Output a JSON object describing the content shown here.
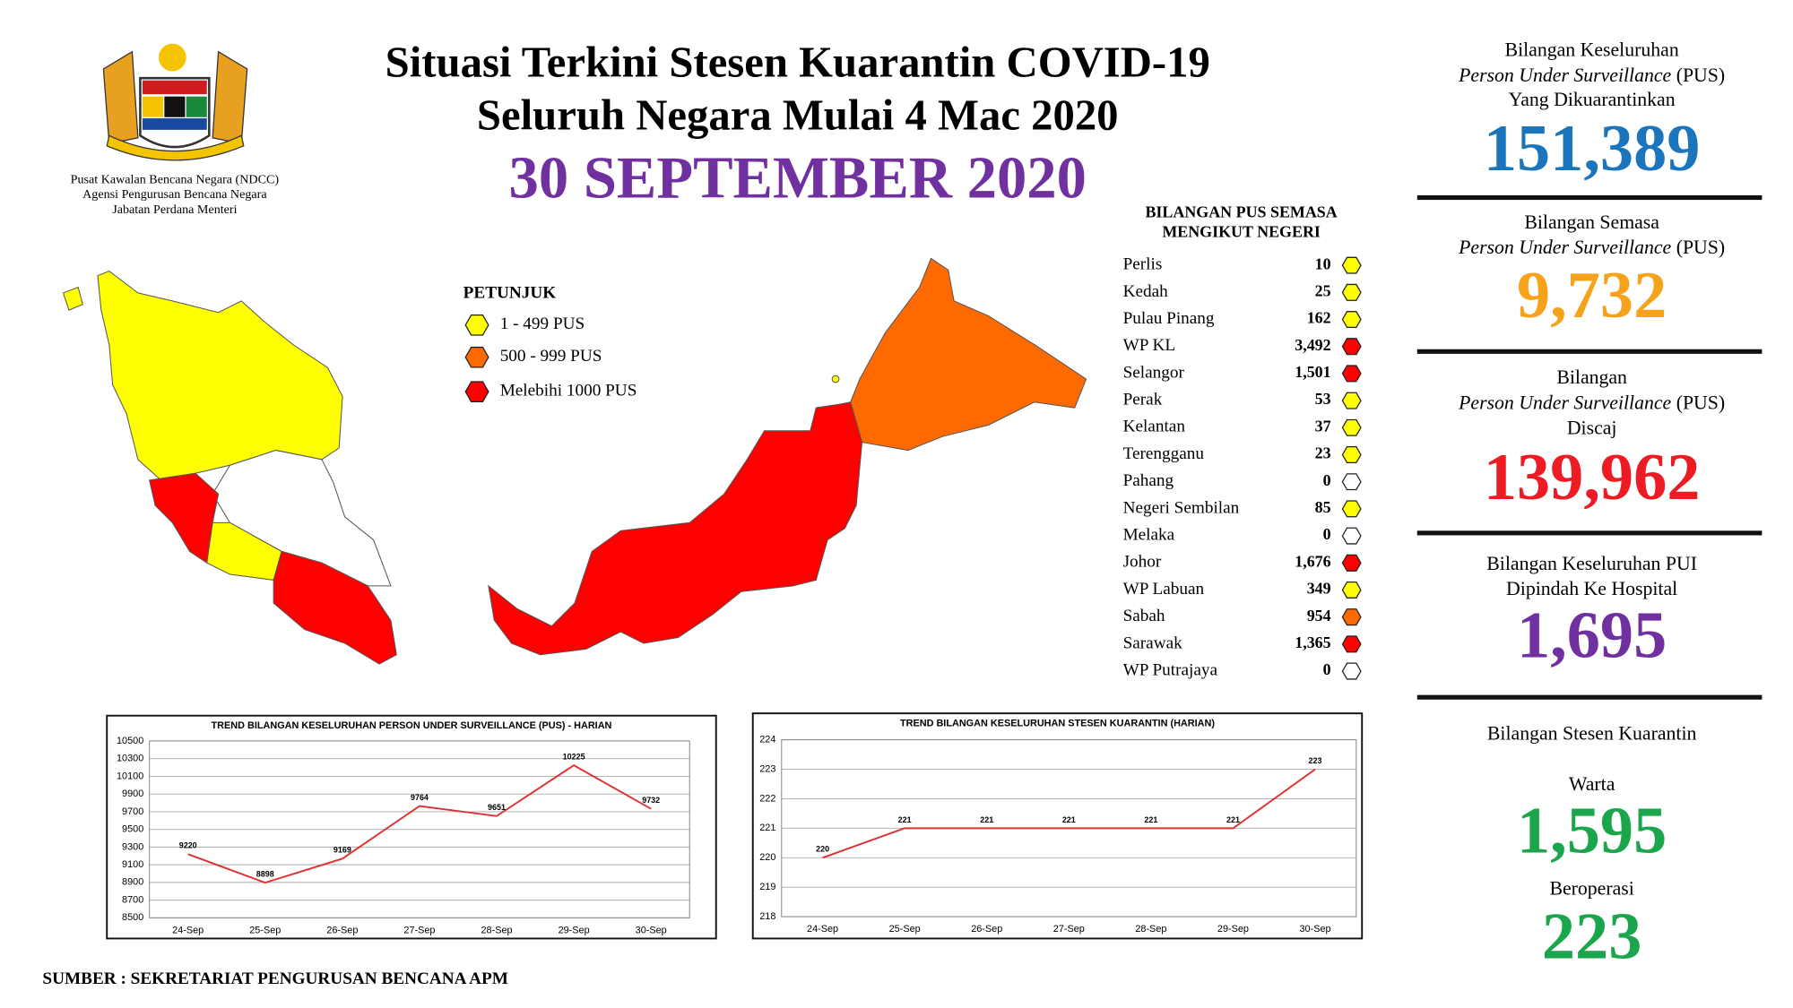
{
  "header": {
    "logo_caption": [
      "Pusat Kawalan Bencana Negara (NDCC)",
      "Agensi Pengurusan Bencana Negara",
      "Jabatan Perdana Menteri"
    ],
    "title_line1": "Situasi Terkini Stesen Kuarantin COVID-19",
    "title_line2": "Seluruh Negara Mulai 4 Mac 2020",
    "date": "30 SEPTEMBER 2020",
    "date_color": "#7030a0"
  },
  "legend": {
    "title": "PETUNJUK",
    "items": [
      {
        "label": "1 - 499 PUS",
        "color": "#ffff00"
      },
      {
        "label": "500 - 999 PUS",
        "color": "#ff6a00"
      },
      {
        "label": "Melebihi 1000 PUS",
        "color": "#ff0000"
      }
    ]
  },
  "states": {
    "title_lines": [
      "BILANGAN PUS SEMASA",
      "MENGIKUT NEGERI"
    ],
    "rows": [
      {
        "name": "Perlis",
        "value": "10",
        "color": "#ffff00"
      },
      {
        "name": "Kedah",
        "value": "25",
        "color": "#ffff00"
      },
      {
        "name": "Pulau Pinang",
        "value": "162",
        "color": "#ffff00"
      },
      {
        "name": "WP KL",
        "value": "3,492",
        "color": "#ff0000"
      },
      {
        "name": "Selangor",
        "value": "1,501",
        "color": "#ff0000"
      },
      {
        "name": "Perak",
        "value": "53",
        "color": "#ffff00"
      },
      {
        "name": "Kelantan",
        "value": "37",
        "color": "#ffff00"
      },
      {
        "name": "Terengganu",
        "value": "23",
        "color": "#ffff00"
      },
      {
        "name": "Pahang",
        "value": "0",
        "color": "#ffffff"
      },
      {
        "name": "Negeri Sembilan",
        "value": "85",
        "color": "#ffff00"
      },
      {
        "name": "Melaka",
        "value": "0",
        "color": "#ffffff"
      },
      {
        "name": "Johor",
        "value": "1,676",
        "color": "#ff0000"
      },
      {
        "name": "WP Labuan",
        "value": "349",
        "color": "#ffff00"
      },
      {
        "name": "Sabah",
        "value": "954",
        "color": "#ff6a00"
      },
      {
        "name": "Sarawak",
        "value": "1,365",
        "color": "#ff0000"
      },
      {
        "name": "WP Putrajaya",
        "value": "0",
        "color": "#ffffff"
      }
    ]
  },
  "stats": {
    "total_pus": {
      "label": "Bilangan Keseluruhan",
      "term": "Person Under Surveillance",
      "term_suffix": "(PUS)",
      "label_end": "Yang Dikuarantinkan",
      "value": "151,389",
      "color": "#1b75bc"
    },
    "current_pus": {
      "label": "Bilangan Semasa",
      "term": "Person Under Surveillance",
      "term_suffix": "(PUS)",
      "value": "9,732",
      "color": "#f7a21b"
    },
    "discharged_pus": {
      "label": "Bilangan",
      "term": "Person Under Surveillance",
      "term_suffix": "(PUS)",
      "label_end": "Discaj",
      "value": "139,962",
      "color": "#ed1c24"
    },
    "pui_hospital": {
      "label": "Bilangan Keseluruhan PUI",
      "label_end": "Dipindah Ke Hospital",
      "value": "1,695",
      "color": "#7030a0"
    },
    "stations": {
      "label": "Bilangan Stesen Kuarantin",
      "gazetted_label": "Warta",
      "gazetted": "1,595",
      "operating_label": "Beroperasi",
      "operating": "223",
      "color": "#1ba64b"
    }
  },
  "chart_data": [
    {
      "type": "line",
      "title": "TREND BILANGAN KESELURUHAN PERSON UNDER SURVEILLANCE (PUS) - HARIAN",
      "categories": [
        "24-Sep",
        "25-Sep",
        "26-Sep",
        "27-Sep",
        "28-Sep",
        "29-Sep",
        "30-Sep"
      ],
      "values": [
        9220,
        8898,
        9169,
        9764,
        9651,
        10225,
        9732
      ],
      "color": "#e03030",
      "ylim": [
        8500,
        10500
      ],
      "yticks": [
        8500,
        8700,
        8900,
        9100,
        9300,
        9500,
        9700,
        9900,
        10100,
        10300,
        10500
      ],
      "grid": true
    },
    {
      "type": "line",
      "title": "TREND BILANGAN KESELURUHAN STESEN KUARANTIN (HARIAN)",
      "categories": [
        "24-Sep",
        "25-Sep",
        "26-Sep",
        "27-Sep",
        "28-Sep",
        "29-Sep",
        "30-Sep"
      ],
      "values": [
        220,
        221,
        221,
        221,
        221,
        221,
        223
      ],
      "color": "#e03030",
      "ylim": [
        218,
        224
      ],
      "yticks": [
        218,
        219,
        220,
        221,
        222,
        223,
        224
      ],
      "grid": true
    }
  ],
  "source": "SUMBER : SEKRETARIAT PENGURUSAN BENCANA APM"
}
